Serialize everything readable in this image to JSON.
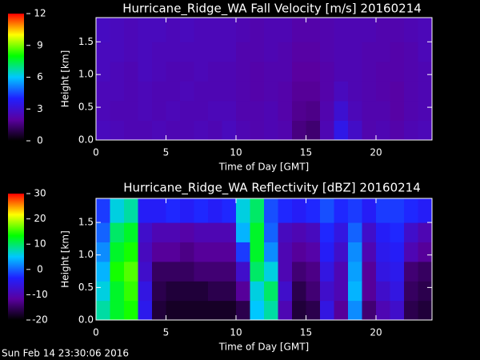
{
  "chart_data": [
    {
      "type": "heatmap",
      "title": "Hurricane_Ridge_WA Fall Velocity [m/s] 20160214",
      "xlabel": "Time of Day [GMT]",
      "ylabel": "Height [km]",
      "x": [
        0.5,
        1.5,
        2.5,
        3.5,
        4.5,
        5.5,
        6.5,
        7.5,
        8.5,
        9.5,
        10.5,
        11.5,
        12.5,
        13.5,
        14.5,
        15.5,
        16.5,
        17.5,
        18.5,
        19.5,
        20.5,
        21.5,
        22.5,
        23.5
      ],
      "y": [
        0.15,
        0.45,
        0.75,
        1.05,
        1.35,
        1.65
      ],
      "z": [
        [
          2.6,
          2.5,
          2.4,
          2.4,
          2.5,
          2.4,
          2.4,
          2.5,
          2.4,
          2.6,
          2.4,
          2.3,
          2.4,
          2.3,
          1.6,
          1.4,
          2.4,
          3.5,
          2.8,
          2.3,
          2.4,
          2.2,
          2.4,
          2.5
        ],
        [
          2.5,
          2.4,
          2.4,
          2.5,
          2.4,
          2.5,
          2.4,
          2.4,
          2.5,
          2.5,
          2.3,
          2.3,
          2.4,
          2.2,
          1.8,
          1.7,
          2.3,
          3.0,
          2.5,
          2.3,
          2.3,
          2.1,
          2.3,
          2.4
        ],
        [
          2.5,
          2.5,
          2.4,
          2.5,
          2.4,
          2.4,
          2.5,
          2.4,
          2.4,
          2.4,
          2.3,
          2.2,
          2.3,
          2.2,
          1.9,
          1.9,
          2.2,
          2.6,
          2.4,
          2.3,
          2.2,
          2.1,
          2.3,
          2.4
        ],
        [
          2.6,
          2.5,
          2.4,
          2.6,
          2.5,
          2.4,
          2.4,
          2.5,
          2.4,
          2.4,
          2.3,
          2.2,
          2.3,
          2.3,
          2.0,
          2.0,
          2.2,
          2.4,
          2.4,
          2.3,
          2.2,
          2.2,
          2.3,
          2.4
        ],
        [
          2.6,
          2.6,
          2.5,
          2.6,
          2.5,
          2.5,
          2.5,
          2.5,
          2.5,
          2.5,
          2.3,
          2.3,
          2.4,
          2.3,
          2.1,
          2.1,
          2.3,
          2.4,
          2.4,
          2.3,
          2.3,
          2.2,
          2.3,
          2.5
        ],
        [
          2.7,
          2.6,
          2.5,
          2.6,
          2.6,
          2.5,
          2.6,
          2.5,
          2.5,
          2.5,
          2.4,
          2.3,
          2.4,
          2.4,
          2.2,
          2.2,
          2.3,
          2.4,
          2.4,
          2.4,
          2.3,
          2.3,
          2.4,
          2.5
        ]
      ],
      "xlim": [
        0,
        24
      ],
      "xticks": [
        0,
        5,
        10,
        15,
        20
      ],
      "ylim": [
        0,
        1.87
      ],
      "yticks": [
        {
          "value": 0,
          "label": "0.0"
        },
        {
          "value": 0.5,
          "label": "0.5"
        },
        {
          "value": 1,
          "label": "1.0"
        },
        {
          "value": 1.5,
          "label": "1.5"
        }
      ],
      "zlim": [
        0,
        12
      ],
      "zticks": [
        0,
        3,
        6,
        9,
        12
      ],
      "colormap": [
        "#000000",
        "#5a00a0",
        "#2020ff",
        "#00c8ff",
        "#00ff00",
        "#ffff00",
        "#ff0000"
      ]
    },
    {
      "type": "heatmap",
      "title": "Hurricane_Ridge_WA Reflectivity [dBZ] 20160214",
      "xlabel": "Time of Day [GMT]",
      "ylabel": "Height [km]",
      "x": [
        0.5,
        1.5,
        2.5,
        3.5,
        4.5,
        5.5,
        6.5,
        7.5,
        8.5,
        9.5,
        10.5,
        11.5,
        12.5,
        13.5,
        14.5,
        15.5,
        16.5,
        17.5,
        18.5,
        19.5,
        20.5,
        21.5,
        22.5,
        23.5
      ],
      "y": [
        0.15,
        0.45,
        0.75,
        1.05,
        1.35,
        1.65
      ],
      "z": [
        [
          8,
          12,
          14,
          -5,
          -17,
          -18,
          -18,
          -18,
          -18,
          -18,
          -16,
          5,
          8,
          -10,
          -17,
          -16,
          -6,
          -12,
          2,
          -14,
          -10,
          -8,
          -16,
          -17
        ],
        [
          6,
          12,
          15,
          -6,
          -16,
          -17,
          -17,
          -17,
          -16,
          -16,
          -12,
          6,
          10,
          -8,
          -16,
          -14,
          -8,
          -10,
          4,
          -12,
          -8,
          -6,
          -15,
          -16
        ],
        [
          4,
          14,
          16,
          -8,
          -15,
          -15,
          -15,
          -14,
          -14,
          -14,
          -8,
          10,
          6,
          -10,
          -14,
          -13,
          -6,
          -10,
          3,
          -12,
          -6,
          -5,
          -14,
          -15
        ],
        [
          2,
          12,
          14,
          -9,
          -12,
          -12,
          -13,
          -12,
          -12,
          -12,
          -2,
          12,
          2,
          -10,
          -12,
          -11,
          -4,
          -8,
          2,
          -10,
          -5,
          -4,
          -10,
          -12
        ],
        [
          0,
          10,
          12,
          -8,
          -10,
          -10,
          -11,
          -10,
          -10,
          -10,
          4,
          12,
          0,
          -9,
          -10,
          -9,
          -3,
          -6,
          0,
          -8,
          -4,
          -3,
          -8,
          -10
        ],
        [
          -2,
          6,
          8,
          -4,
          -4,
          -3,
          -4,
          -3,
          -4,
          -3,
          6,
          10,
          -1,
          -3,
          -4,
          -3,
          -1,
          -3,
          -2,
          -4,
          -2,
          -2,
          -3,
          -4
        ]
      ],
      "xlim": [
        0,
        24
      ],
      "xticks": [
        0,
        5,
        10,
        15,
        20
      ],
      "ylim": [
        0,
        1.87
      ],
      "yticks": [
        {
          "value": 0,
          "label": "0.0"
        },
        {
          "value": 0.5,
          "label": "0.5"
        },
        {
          "value": 1,
          "label": "1.0"
        },
        {
          "value": 1.5,
          "label": "1.5"
        }
      ],
      "zlim": [
        -20,
        30
      ],
      "zticks": [
        -20,
        -10,
        0,
        10,
        20,
        30
      ],
      "colormap": [
        "#000000",
        "#5a00a0",
        "#2020ff",
        "#00c8ff",
        "#00ff00",
        "#ffff00",
        "#ff0000"
      ]
    }
  ],
  "timestamp": "Sun Feb 14 23:30:06 2016"
}
